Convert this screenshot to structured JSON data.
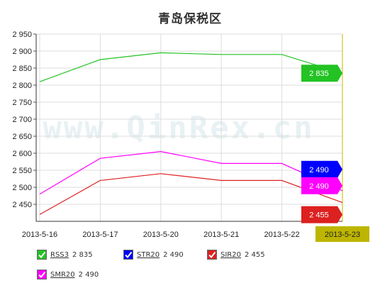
{
  "chart_data": {
    "type": "line",
    "title": "青岛保税区",
    "watermark": "www.QinRex.cn",
    "categories": [
      "2013-5-16",
      "2013-5-17",
      "2013-5-20",
      "2013-5-21",
      "2013-5-22",
      "2013-5-23"
    ],
    "ylim": [
      2400,
      2950
    ],
    "yticks": [
      "2 950",
      "2 900",
      "2 850",
      "2 800",
      "2 750",
      "2 700",
      "2 650",
      "2 600",
      "2 550",
      "2 500",
      "2 450"
    ],
    "ytick_values": [
      2950,
      2900,
      2850,
      2800,
      2750,
      2700,
      2650,
      2600,
      2550,
      2500,
      2450
    ],
    "grid": true,
    "legend_position": "bottom-left",
    "highlight_category": "2013-5-23",
    "series": [
      {
        "name": "RSS3",
        "color": "#22c322",
        "values": [
          2810,
          2875,
          2895,
          2890,
          2890,
          2835
        ],
        "last_label": "2 835"
      },
      {
        "name": "STR20",
        "color": "#0000ff",
        "values": [
          null,
          null,
          null,
          null,
          null,
          2490
        ],
        "last_label": "2 490"
      },
      {
        "name": "SIR20",
        "color": "#dd2020",
        "values": [
          2420,
          2520,
          2540,
          2520,
          2520,
          2455
        ],
        "last_label": "2 455"
      },
      {
        "name": "SMR20",
        "color": "#ff00ff",
        "values": [
          2480,
          2585,
          2605,
          2570,
          2570,
          2490
        ],
        "last_label": "2 490"
      }
    ]
  }
}
